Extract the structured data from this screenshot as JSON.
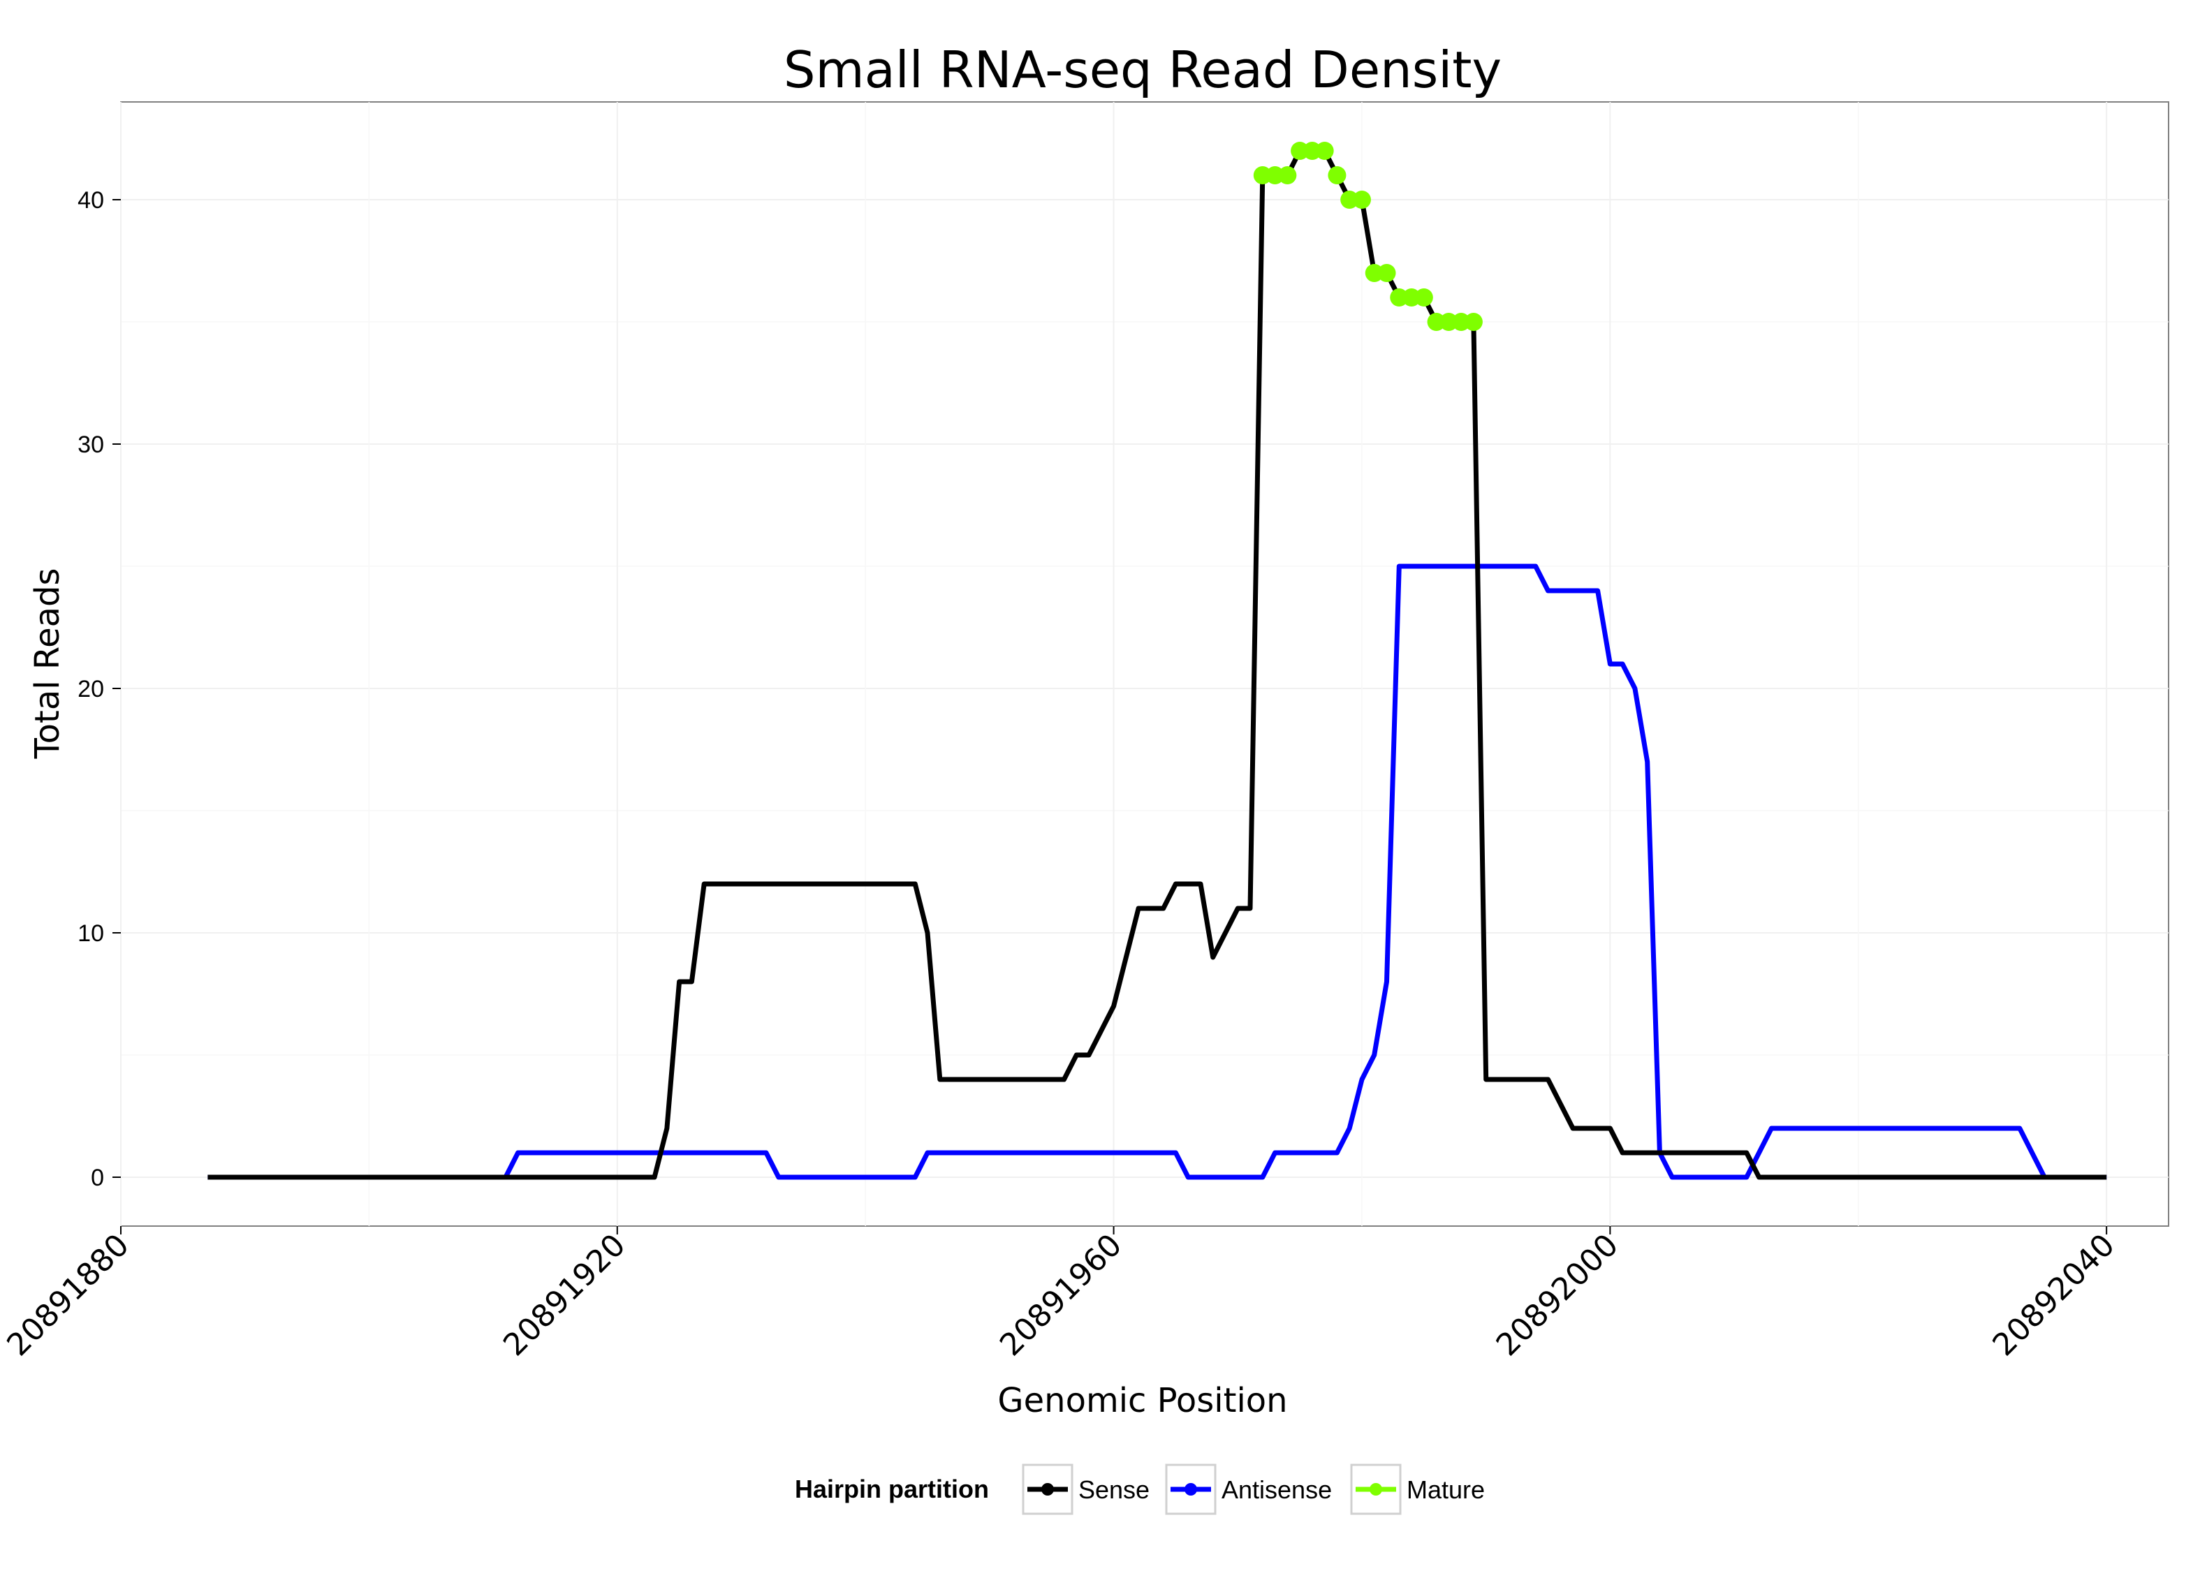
{
  "chart_data": {
    "type": "line",
    "title": "Small RNA-seq Read Density",
    "xlabel": "Genomic Position",
    "ylabel": "Total Reads",
    "xlim": [
      20891880,
      20892045
    ],
    "ylim": [
      -2,
      44
    ],
    "x_ticks": [
      20891880,
      20891920,
      20891960,
      20892000,
      20892040
    ],
    "x_tick_labels": [
      "20891880",
      "20891920",
      "20891960",
      "20892000",
      "20892040"
    ],
    "y_ticks": [
      0,
      10,
      20,
      30,
      40
    ],
    "y_tick_labels": [
      "0",
      "10",
      "20",
      "30",
      "40"
    ],
    "grid": true,
    "legend": {
      "title": "Hairpin partition",
      "position": "bottom",
      "entries": [
        "Sense",
        "Antisense",
        "Mature"
      ]
    },
    "colors": {
      "Sense": "#000000",
      "Antisense": "#0000ff",
      "Mature": "#7fff00"
    },
    "series": [
      {
        "name": "Sense",
        "x": [
          20891887,
          20891923,
          20891924,
          20891925,
          20891926,
          20891927,
          20891944,
          20891945,
          20891946,
          20891956,
          20891957,
          20891958,
          20891960,
          20891962,
          20891964,
          20891965,
          20891967,
          20891968,
          20891970,
          20891971,
          20891972,
          20891973,
          20891974,
          20891975,
          20891976,
          20891977,
          20891978,
          20891979,
          20891980,
          20891981,
          20891982,
          20891983,
          20891984,
          20891985,
          20891986,
          20891987,
          20891988,
          20891989,
          20891990,
          20891991,
          20891995,
          20891997,
          20891999,
          20892000,
          20892001,
          20892011,
          20892012,
          20892040
        ],
        "y": [
          0,
          0,
          2,
          8,
          8,
          12,
          12,
          10,
          4,
          4,
          5,
          5,
          7,
          11,
          11,
          12,
          12,
          9,
          11,
          11,
          41,
          41,
          41,
          42,
          42,
          42,
          41,
          40,
          40,
          37,
          37,
          36,
          36,
          36,
          35,
          35,
          35,
          35,
          4,
          4,
          4,
          2,
          2,
          2,
          1,
          1,
          0,
          0
        ]
      },
      {
        "name": "Antisense",
        "x": [
          20891887,
          20891911,
          20891912,
          20891932,
          20891933,
          20891944,
          20891945,
          20891965,
          20891966,
          20891972,
          20891973,
          20891978,
          20891979,
          20891980,
          20891981,
          20891982,
          20891983,
          20891994,
          20891995,
          20891999,
          20892000,
          20892001,
          20892002,
          20892003,
          20892004,
          20892005,
          20892011,
          20892013,
          20892033,
          20892035,
          20892040
        ],
        "y": [
          0,
          0,
          1,
          1,
          0,
          0,
          1,
          1,
          0,
          0,
          1,
          1,
          2,
          4,
          5,
          8,
          25,
          25,
          24,
          24,
          21,
          21,
          20,
          17,
          1,
          0,
          0,
          2,
          2,
          0,
          0
        ]
      },
      {
        "name": "Mature",
        "x": [
          20891972,
          20891973,
          20891974,
          20891975,
          20891976,
          20891977,
          20891978,
          20891979,
          20891980,
          20891981,
          20891982,
          20891983,
          20891984,
          20891985,
          20891986,
          20891987,
          20891988,
          20891989
        ],
        "y": [
          41,
          41,
          41,
          42,
          42,
          42,
          41,
          40,
          40,
          37,
          37,
          36,
          36,
          36,
          35,
          35,
          35,
          35
        ]
      }
    ]
  }
}
